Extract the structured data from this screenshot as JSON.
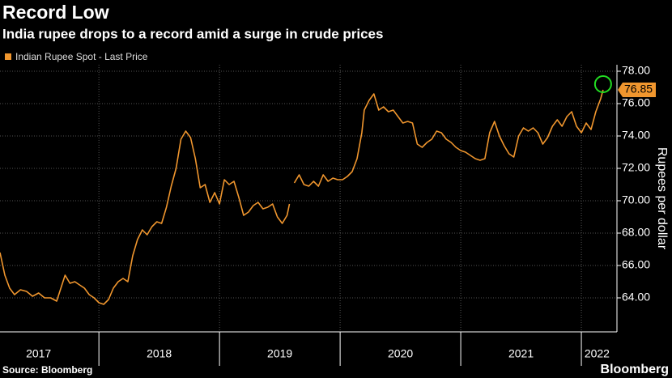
{
  "chart_data": {
    "type": "line",
    "title": "Record Low",
    "subtitle": "India rupee drops to a record amid a surge in crude prices",
    "y_label": "Rupees per dollar",
    "source": "Source: Bloomberg",
    "brand": "Bloomberg",
    "legend": "top-left",
    "grid": true,
    "x": [
      2017.18,
      2017.22,
      2017.26,
      2017.3,
      2017.35,
      2017.4,
      2017.45,
      2017.5,
      2017.55,
      2017.6,
      2017.65,
      2017.72,
      2017.76,
      2017.8,
      2017.84,
      2017.88,
      2017.92,
      2017.96,
      2018.0,
      2018.04,
      2018.08,
      2018.12,
      2018.16,
      2018.2,
      2018.24,
      2018.28,
      2018.32,
      2018.36,
      2018.4,
      2018.44,
      2018.48,
      2018.52,
      2018.56,
      2018.6,
      2018.64,
      2018.68,
      2018.72,
      2018.76,
      2018.8,
      2018.84,
      2018.88,
      2018.92,
      2018.96,
      2019.0,
      2019.04,
      2019.08,
      2019.12,
      2019.16,
      2019.2,
      2019.24,
      2019.28,
      2019.32,
      2019.36,
      2019.4,
      2019.44,
      2019.48,
      2019.52,
      2019.56,
      2019.58,
      2019.6,
      2019.62,
      2019.66,
      2019.7,
      2019.74,
      2019.78,
      2019.82,
      2019.86,
      2019.9,
      2019.94,
      2019.98,
      2020.02,
      2020.06,
      2020.1,
      2020.14,
      2020.18,
      2020.2,
      2020.24,
      2020.28,
      2020.32,
      2020.36,
      2020.4,
      2020.44,
      2020.48,
      2020.52,
      2020.56,
      2020.6,
      2020.64,
      2020.68,
      2020.72,
      2020.76,
      2020.8,
      2020.84,
      2020.88,
      2020.92,
      2020.96,
      2021.0,
      2021.04,
      2021.08,
      2021.12,
      2021.16,
      2021.2,
      2021.24,
      2021.28,
      2021.32,
      2021.36,
      2021.4,
      2021.44,
      2021.48,
      2021.52,
      2021.56,
      2021.6,
      2021.64,
      2021.68,
      2021.72,
      2021.76,
      2021.8,
      2021.84,
      2021.88,
      2021.92,
      2021.96,
      2022.0,
      2022.04,
      2022.08,
      2022.12,
      2022.16,
      2022.18
    ],
    "series": [
      {
        "name": "Indian Rupee Spot - Last Price",
        "color": "#f0962e",
        "values": [
          66.8,
          65.4,
          64.6,
          64.2,
          64.5,
          64.4,
          64.1,
          64.3,
          64.0,
          64.0,
          63.8,
          65.4,
          64.9,
          65.0,
          64.8,
          64.6,
          64.2,
          64.0,
          63.7,
          63.6,
          63.9,
          64.6,
          65.0,
          65.2,
          65.0,
          66.6,
          67.6,
          68.2,
          67.9,
          68.4,
          68.7,
          68.6,
          69.6,
          70.9,
          72.0,
          73.8,
          74.3,
          73.9,
          72.6,
          70.8,
          71.0,
          69.9,
          70.5,
          69.8,
          71.3,
          71.0,
          71.2,
          70.2,
          69.1,
          69.3,
          69.7,
          69.9,
          69.5,
          69.6,
          69.8,
          69.0,
          68.6,
          69.1,
          69.8,
          null,
          71.1,
          71.6,
          71.0,
          70.9,
          71.2,
          70.9,
          71.6,
          71.2,
          71.4,
          71.3,
          71.3,
          71.5,
          71.8,
          72.6,
          74.2,
          75.6,
          76.2,
          76.6,
          75.6,
          75.8,
          75.5,
          75.6,
          75.2,
          74.8,
          74.9,
          74.8,
          73.5,
          73.3,
          73.6,
          73.8,
          74.3,
          74.2,
          73.8,
          73.6,
          73.3,
          73.1,
          73.0,
          72.8,
          72.6,
          72.5,
          72.6,
          74.2,
          74.9,
          74.0,
          73.4,
          72.9,
          72.7,
          74.0,
          74.5,
          74.3,
          74.5,
          74.2,
          73.5,
          73.9,
          74.6,
          75.0,
          74.6,
          75.2,
          75.5,
          74.6,
          74.2,
          74.8,
          74.4,
          75.5,
          76.3,
          76.85
        ]
      }
    ],
    "xlim": [
      2017.18,
      2022.295
    ],
    "xticks": [
      {
        "value": 2017.5,
        "label": "2017"
      },
      {
        "value": 2018.5,
        "label": "2018"
      },
      {
        "value": 2019.5,
        "label": "2019"
      },
      {
        "value": 2020.5,
        "label": "2020"
      },
      {
        "value": 2021.5,
        "label": "2021"
      },
      {
        "value": 2022.13,
        "label": "2022"
      }
    ],
    "xgrid": [
      2018,
      2019,
      2020,
      2021,
      2022
    ],
    "ylim": [
      61.9,
      78.4
    ],
    "yticks": [
      {
        "value": 64,
        "label": "64.00"
      },
      {
        "value": 66,
        "label": "66.00"
      },
      {
        "value": 68,
        "label": "68.00"
      },
      {
        "value": 70,
        "label": "70.00"
      },
      {
        "value": 72,
        "label": "72.00"
      },
      {
        "value": 74,
        "label": "74.00"
      },
      {
        "value": 76,
        "label": "76.00"
      },
      {
        "value": 78,
        "label": "78.00"
      }
    ]
  }
}
